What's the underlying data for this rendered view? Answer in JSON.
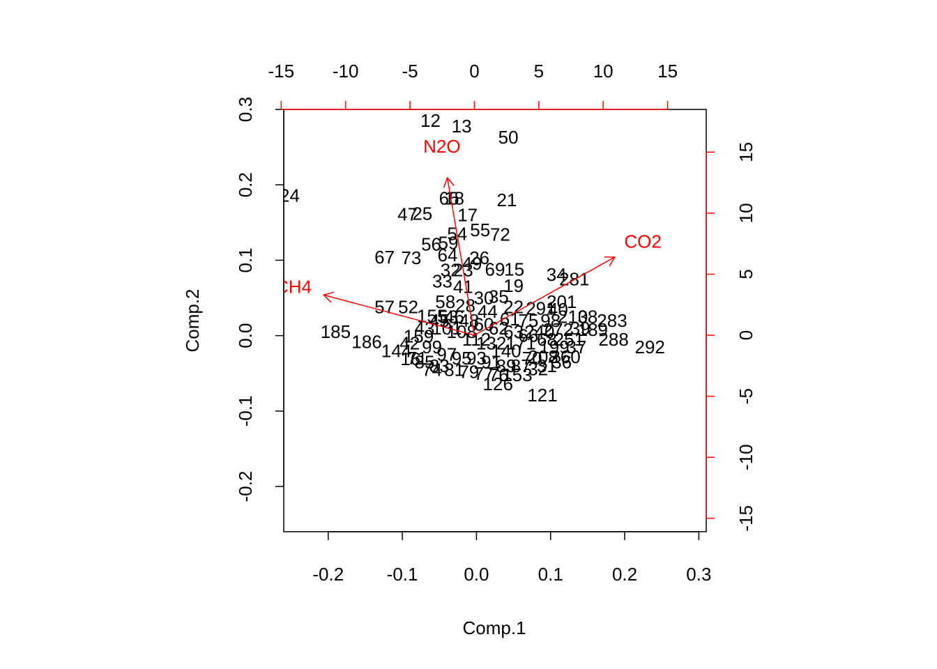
{
  "chart_data": {
    "type": "scatter",
    "subtype": "biplot",
    "xlabel": "Comp.1",
    "ylabel": "Comp.2",
    "xlim": [
      -0.26,
      0.31
    ],
    "ylim": [
      -0.26,
      0.3
    ],
    "x_ticks": [
      -0.2,
      -0.1,
      0.0,
      0.1,
      0.2,
      0.3
    ],
    "x_tick_labels": [
      "-0.2",
      "-0.1",
      "0.0",
      "0.1",
      "0.2",
      "0.3"
    ],
    "y_ticks": [
      -0.2,
      -0.1,
      0.0,
      0.1,
      0.2,
      0.3
    ],
    "y_tick_labels": [
      "-0.2",
      "-0.1",
      "0.0",
      "0.1",
      "0.2",
      "0.3"
    ],
    "top_axis": {
      "lim": [
        -14.8,
        18.0
      ],
      "ticks": [
        -15,
        -10,
        -5,
        0,
        5,
        10,
        15
      ],
      "tick_labels": [
        "-15",
        "-10",
        "-5",
        "0",
        "5",
        "10",
        "15"
      ],
      "color": "#ff0000"
    },
    "right_axis": {
      "lim": [
        -16.1,
        18.5
      ],
      "ticks": [
        -15,
        -10,
        -5,
        0,
        5,
        10,
        15
      ],
      "tick_labels": [
        "-15",
        "-10",
        "-5",
        "0",
        "5",
        "10",
        "15"
      ],
      "color": "#ff0000"
    },
    "loadings": [
      {
        "name": "CO2",
        "x": 10.9,
        "y": 6.4
      },
      {
        "name": "CH4",
        "x": -11.7,
        "y": 3.3
      },
      {
        "name": "N2O",
        "x": -2.1,
        "y": 12.9
      }
    ],
    "loading_color": "#ff0000",
    "points": [
      {
        "label": "12",
        "x": -0.062,
        "y": 0.285
      },
      {
        "label": "13",
        "x": -0.02,
        "y": 0.278
      },
      {
        "label": "50",
        "x": 0.043,
        "y": 0.263
      },
      {
        "label": "24",
        "x": -0.252,
        "y": 0.186
      },
      {
        "label": "65",
        "x": -0.037,
        "y": 0.182
      },
      {
        "label": "18",
        "x": -0.03,
        "y": 0.182
      },
      {
        "label": "21",
        "x": 0.041,
        "y": 0.18
      },
      {
        "label": "47",
        "x": -0.093,
        "y": 0.161
      },
      {
        "label": "25",
        "x": -0.073,
        "y": 0.162
      },
      {
        "label": "17",
        "x": -0.012,
        "y": 0.16
      },
      {
        "label": "55",
        "x": 0.005,
        "y": 0.14
      },
      {
        "label": "72",
        "x": 0.032,
        "y": 0.134
      },
      {
        "label": "54",
        "x": -0.026,
        "y": 0.135
      },
      {
        "label": "56",
        "x": -0.061,
        "y": 0.121
      },
      {
        "label": "59",
        "x": -0.038,
        "y": 0.123
      },
      {
        "label": "67",
        "x": -0.124,
        "y": 0.104
      },
      {
        "label": "73",
        "x": -0.088,
        "y": 0.103
      },
      {
        "label": "64",
        "x": -0.039,
        "y": 0.107
      },
      {
        "label": "26",
        "x": 0.004,
        "y": 0.103
      },
      {
        "label": "49",
        "x": -0.006,
        "y": 0.096
      },
      {
        "label": "15",
        "x": 0.051,
        "y": 0.088
      },
      {
        "label": "69",
        "x": 0.025,
        "y": 0.088
      },
      {
        "label": "32",
        "x": -0.035,
        "y": 0.087
      },
      {
        "label": "23",
        "x": -0.018,
        "y": 0.087
      },
      {
        "label": "33",
        "x": -0.046,
        "y": 0.072
      },
      {
        "label": "34",
        "x": 0.108,
        "y": 0.081
      },
      {
        "label": "281",
        "x": 0.132,
        "y": 0.075
      },
      {
        "label": "19",
        "x": 0.05,
        "y": 0.066
      },
      {
        "label": "57",
        "x": -0.124,
        "y": 0.038
      },
      {
        "label": "52",
        "x": -0.092,
        "y": 0.038
      },
      {
        "label": "58",
        "x": -0.042,
        "y": 0.045
      },
      {
        "label": "155",
        "x": -0.06,
        "y": 0.026
      },
      {
        "label": "53",
        "x": -0.038,
        "y": 0.025
      },
      {
        "label": "201",
        "x": 0.115,
        "y": 0.045
      },
      {
        "label": "291",
        "x": 0.087,
        "y": 0.036
      },
      {
        "label": "283",
        "x": 0.183,
        "y": 0.02
      },
      {
        "label": "189",
        "x": 0.157,
        "y": 0.008
      },
      {
        "label": "288",
        "x": 0.185,
        "y": -0.005
      },
      {
        "label": "292",
        "x": 0.234,
        "y": -0.015
      },
      {
        "label": "185",
        "x": -0.19,
        "y": 0.005
      },
      {
        "label": "186",
        "x": -0.148,
        "y": -0.008
      },
      {
        "label": "144",
        "x": -0.108,
        "y": -0.02
      },
      {
        "label": "159",
        "x": -0.078,
        "y": -0.001
      },
      {
        "label": "16",
        "x": -0.089,
        "y": -0.031
      },
      {
        "label": "126",
        "x": 0.029,
        "y": -0.064
      },
      {
        "label": "121",
        "x": 0.089,
        "y": -0.079
      },
      {
        "label": "153",
        "x": 0.055,
        "y": -0.052
      },
      {
        "label": "32",
        "x": 0.083,
        "y": -0.044
      },
      {
        "label": "41",
        "x": -0.018,
        "y": 0.065
      },
      {
        "label": "30",
        "x": 0.01,
        "y": 0.05
      },
      {
        "label": "35",
        "x": 0.03,
        "y": 0.052
      },
      {
        "label": "22",
        "x": 0.05,
        "y": 0.038
      },
      {
        "label": "28",
        "x": -0.015,
        "y": 0.04
      },
      {
        "label": "44",
        "x": 0.015,
        "y": 0.032
      },
      {
        "label": "61",
        "x": 0.045,
        "y": 0.022
      },
      {
        "label": "75",
        "x": 0.07,
        "y": 0.02
      },
      {
        "label": "98",
        "x": 0.1,
        "y": 0.02
      },
      {
        "label": "210",
        "x": 0.13,
        "y": 0.025
      },
      {
        "label": "272",
        "x": 0.11,
        "y": 0.008
      },
      {
        "label": "240",
        "x": 0.085,
        "y": 0.005
      },
      {
        "label": "251",
        "x": 0.125,
        "y": -0.005
      },
      {
        "label": "199",
        "x": 0.105,
        "y": -0.015
      },
      {
        "label": "260",
        "x": 0.12,
        "y": -0.028
      },
      {
        "label": "208",
        "x": 0.09,
        "y": -0.028
      },
      {
        "label": "171",
        "x": 0.06,
        "y": -0.01
      },
      {
        "label": "140",
        "x": 0.04,
        "y": -0.02
      },
      {
        "label": "132",
        "x": 0.02,
        "y": -0.01
      },
      {
        "label": "112",
        "x": 0.0,
        "y": -0.005
      },
      {
        "label": "108",
        "x": -0.02,
        "y": 0.005
      },
      {
        "label": "101",
        "x": -0.04,
        "y": 0.01
      },
      {
        "label": "99",
        "x": -0.06,
        "y": -0.015
      },
      {
        "label": "97",
        "x": -0.04,
        "y": -0.025
      },
      {
        "label": "95",
        "x": -0.02,
        "y": -0.03
      },
      {
        "label": "93",
        "x": 0.0,
        "y": -0.03
      },
      {
        "label": "91",
        "x": 0.02,
        "y": -0.035
      },
      {
        "label": "89",
        "x": 0.04,
        "y": -0.04
      },
      {
        "label": "87",
        "x": 0.06,
        "y": -0.04
      },
      {
        "label": "85",
        "x": -0.07,
        "y": -0.035
      },
      {
        "label": "83",
        "x": -0.05,
        "y": -0.04
      },
      {
        "label": "81",
        "x": -0.03,
        "y": -0.045
      },
      {
        "label": "79",
        "x": -0.01,
        "y": -0.048
      },
      {
        "label": "77",
        "x": 0.01,
        "y": -0.05
      },
      {
        "label": "76",
        "x": 0.03,
        "y": -0.052
      },
      {
        "label": "74",
        "x": -0.06,
        "y": -0.045
      },
      {
        "label": "71",
        "x": -0.08,
        "y": -0.03
      },
      {
        "label": "70",
        "x": 0.075,
        "y": -0.03
      },
      {
        "label": "68",
        "x": 0.095,
        "y": -0.005
      },
      {
        "label": "66",
        "x": 0.07,
        "y": 0.0
      },
      {
        "label": "63",
        "x": 0.05,
        "y": 0.005
      },
      {
        "label": "62",
        "x": 0.03,
        "y": 0.01
      },
      {
        "label": "60",
        "x": 0.01,
        "y": 0.015
      },
      {
        "label": "48",
        "x": -0.01,
        "y": 0.02
      },
      {
        "label": "46",
        "x": -0.03,
        "y": 0.025
      },
      {
        "label": "45",
        "x": -0.05,
        "y": 0.02
      },
      {
        "label": "43",
        "x": -0.07,
        "y": 0.01
      },
      {
        "label": "42",
        "x": -0.09,
        "y": -0.01
      },
      {
        "label": "40",
        "x": 0.11,
        "y": 0.035
      },
      {
        "label": "39",
        "x": 0.14,
        "y": 0.01
      },
      {
        "label": "38",
        "x": 0.15,
        "y": 0.025
      },
      {
        "label": "37",
        "x": 0.135,
        "y": -0.015
      },
      {
        "label": "36",
        "x": 0.115,
        "y": -0.035
      },
      {
        "label": "31",
        "x": 0.095,
        "y": -0.04
      }
    ]
  }
}
